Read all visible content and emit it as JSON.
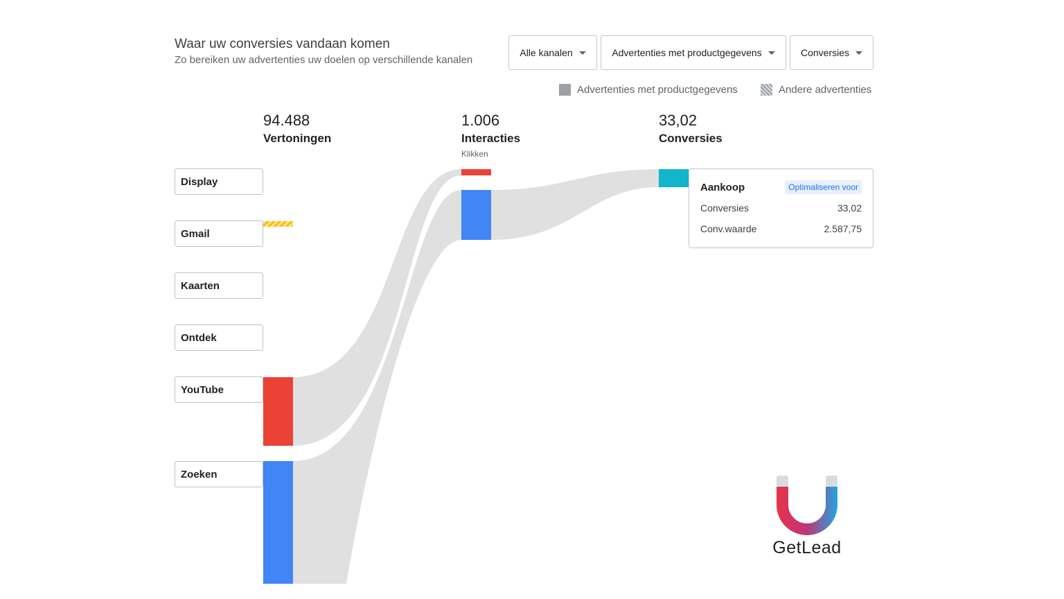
{
  "header": {
    "title": "Waar uw conversies vandaan komen",
    "subtitle": "Zo bereiken uw advertenties uw doelen op verschillende kanalen"
  },
  "filters": {
    "channels": "Alle kanalen",
    "ad_type": "Advertenties met productgegevens",
    "metric": "Conversies"
  },
  "legend": {
    "product_ads": "Advertenties met productgegevens",
    "other_ads": "Andere advertenties"
  },
  "stats": {
    "impressions": {
      "value": "94.488",
      "label": "Vertoningen"
    },
    "interactions": {
      "value": "1.006",
      "label": "Interacties",
      "sub": "Klikken"
    },
    "conversions": {
      "value": "33,02",
      "label": "Conversies"
    }
  },
  "channels": [
    "Display",
    "Gmail",
    "Kaarten",
    "Ontdek",
    "YouTube",
    "Zoeken"
  ],
  "conversion_card": {
    "action": "Aankoop",
    "optimize_link": "Optimaliseren voor",
    "rows": [
      {
        "label": "Conversies",
        "value": "33,02"
      },
      {
        "label": "Conv.waarde",
        "value": "2.587,75"
      }
    ]
  },
  "brand": {
    "name": "GetLead"
  },
  "colors": {
    "youtube": "#ea4335",
    "search": "#4285f4",
    "conversion": "#12b5cb",
    "gmail": "#fbbc04",
    "flow": "#e0e0e0"
  }
}
